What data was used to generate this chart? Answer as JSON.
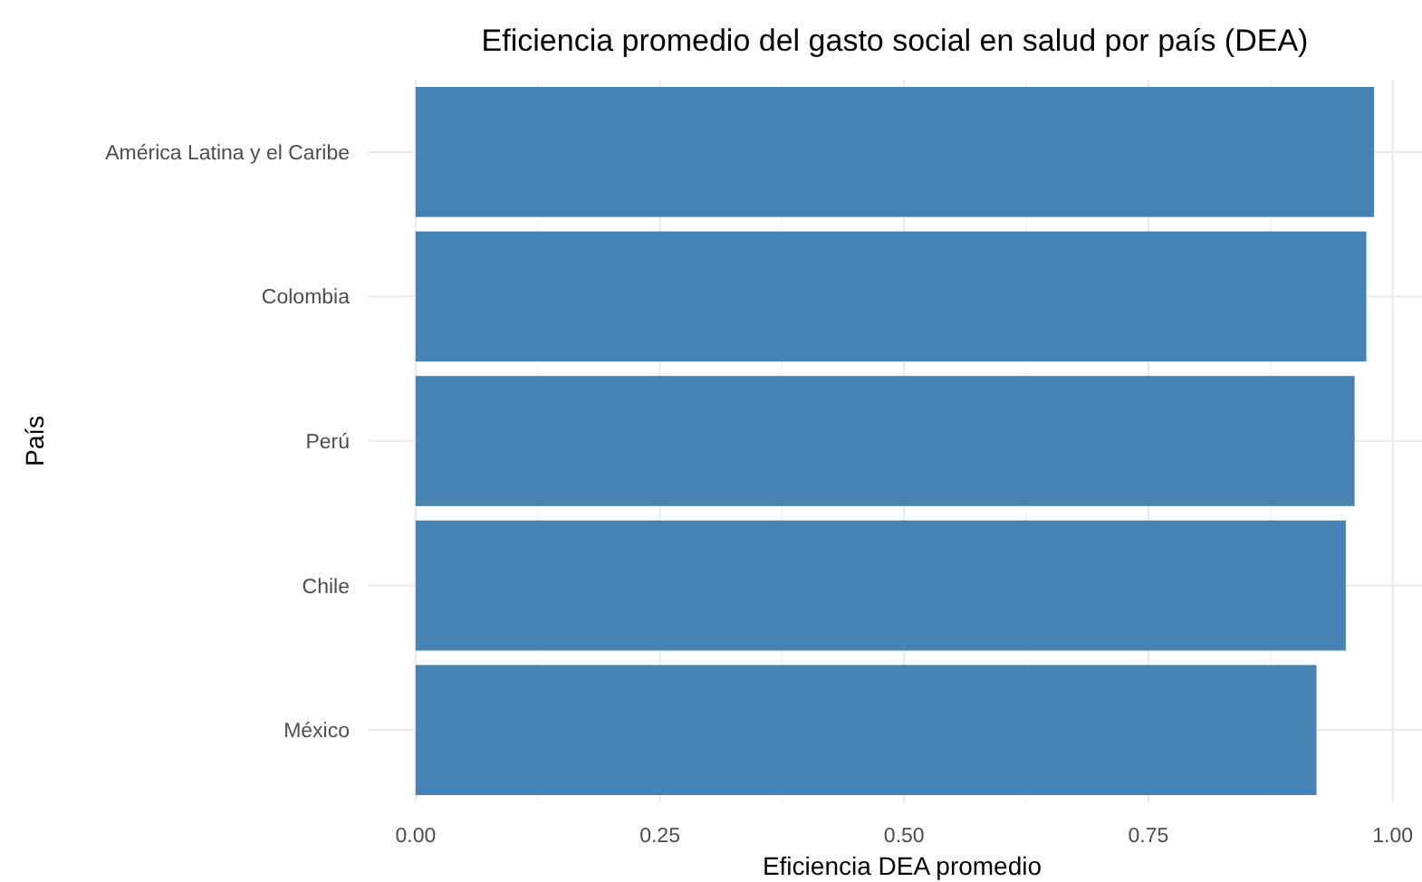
{
  "chart_data": {
    "type": "bar",
    "orientation": "horizontal",
    "title": "Eficiencia promedio del gasto social en salud por país (DEA)",
    "xlabel": "Eficiencia DEA promedio",
    "ylabel": "País",
    "categories": [
      "América Latina y el Caribe",
      "Colombia",
      "Perú",
      "Chile",
      "México"
    ],
    "values": [
      0.981,
      0.973,
      0.961,
      0.952,
      0.922
    ],
    "color": "#4682b4",
    "xlim": [
      -0.049,
      1.03
    ],
    "xticks": [
      {
        "value": 0,
        "label": "0.00"
      },
      {
        "value": 0.25,
        "label": "0.25"
      },
      {
        "value": 0.5,
        "label": "0.50"
      },
      {
        "value": 0.75,
        "label": "0.75"
      },
      {
        "value": 1,
        "label": "1.00"
      }
    ],
    "grid": true
  }
}
